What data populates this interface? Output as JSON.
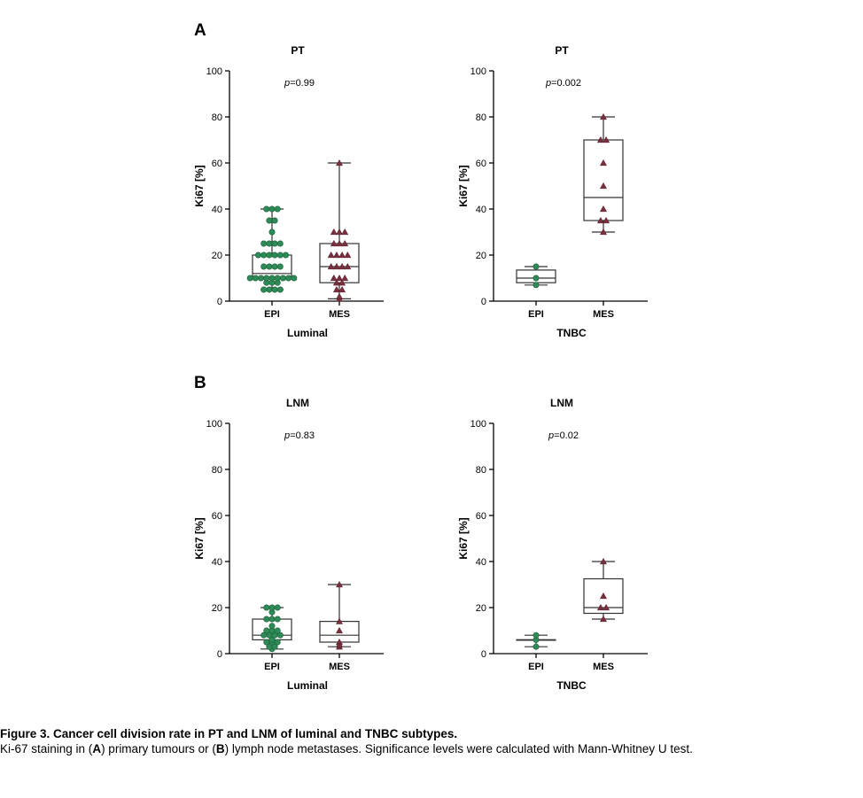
{
  "panel_labels": [
    "A",
    "B"
  ],
  "caption": {
    "title": "Figure 3. Cancer cell division rate in PT and LNM of luminal and TNBC subtypes.",
    "text_1": "Ki-67 staining in (",
    "bold_a": "A",
    "text_2": ") primary tumours or (",
    "bold_b": "B",
    "text_3": ") lymph node metastases. Significance levels were calculated with Mann-Whitney U test."
  },
  "colors": {
    "epi": "#2e8b57",
    "mes": "#7a2f3e",
    "axis": "#000000",
    "box": "#333333"
  },
  "chart_data": [
    {
      "type": "box",
      "title": "PT",
      "annotation_prefix": "p",
      "annotation_value": "=0.99",
      "xlabel": "Luminal",
      "ylabel": "Ki67 [%]",
      "ylim": [
        0,
        100
      ],
      "yticks": [
        0,
        20,
        40,
        60,
        80,
        100
      ],
      "categories": [
        "EPI",
        "MES"
      ],
      "series": [
        {
          "marker": "circle",
          "box": {
            "min": 5,
            "q1": 10,
            "median": 12,
            "q3": 20,
            "max": 40
          },
          "points": [
            40,
            40,
            40,
            35,
            35,
            30,
            25,
            25,
            25,
            25,
            20,
            20,
            20,
            20,
            20,
            20,
            15,
            15,
            15,
            15,
            10,
            10,
            10,
            10,
            10,
            10,
            10,
            10,
            10,
            8,
            8,
            8,
            5,
            5,
            5,
            5
          ]
        },
        {
          "marker": "triangle",
          "box": {
            "min": 1,
            "q1": 8,
            "median": 15,
            "q3": 25,
            "max": 60
          },
          "points": [
            60,
            30,
            30,
            30,
            25,
            25,
            25,
            20,
            20,
            20,
            20,
            15,
            15,
            15,
            15,
            10,
            10,
            10,
            8,
            8,
            5,
            5,
            2,
            1
          ]
        }
      ]
    },
    {
      "type": "box",
      "title": "PT",
      "annotation_prefix": "p",
      "annotation_value": "=0.002",
      "xlabel": "TNBC",
      "ylabel": "Ki67 [%]",
      "ylim": [
        0,
        100
      ],
      "yticks": [
        0,
        20,
        40,
        60,
        80,
        100
      ],
      "categories": [
        "EPI",
        "MES"
      ],
      "series": [
        {
          "marker": "circle",
          "box": {
            "min": 7,
            "q1": 8,
            "median": 10,
            "q3": 13.5,
            "max": 15
          },
          "points": [
            15,
            10,
            7
          ]
        },
        {
          "marker": "triangle",
          "box": {
            "min": 30,
            "q1": 35,
            "median": 45,
            "q3": 70,
            "max": 80
          },
          "points": [
            80,
            70,
            70,
            60,
            50,
            40,
            35,
            35,
            30
          ]
        }
      ]
    },
    {
      "type": "box",
      "title": "LNM",
      "annotation_prefix": "p",
      "annotation_value": "=0.83",
      "xlabel": "Luminal",
      "ylabel": "Ki67 [%]",
      "ylim": [
        0,
        100
      ],
      "yticks": [
        0,
        20,
        40,
        60,
        80,
        100
      ],
      "categories": [
        "EPI",
        "MES"
      ],
      "series": [
        {
          "marker": "circle",
          "box": {
            "min": 2,
            "q1": 6,
            "median": 8,
            "q3": 15,
            "max": 20
          },
          "points": [
            20,
            20,
            20,
            18,
            15,
            15,
            15,
            12,
            10,
            10,
            10,
            8,
            8,
            8,
            8,
            6,
            5,
            5,
            5,
            3,
            3,
            2
          ]
        },
        {
          "marker": "triangle",
          "box": {
            "min": 3,
            "q1": 5,
            "median": 8,
            "q3": 14,
            "max": 30
          },
          "points": [
            30,
            14,
            10,
            5,
            4,
            3
          ]
        }
      ]
    },
    {
      "type": "box",
      "title": "LNM",
      "annotation_prefix": "p",
      "annotation_value": "=0.02",
      "xlabel": "TNBC",
      "ylabel": "Ki67 [%]",
      "ylim": [
        0,
        100
      ],
      "yticks": [
        0,
        20,
        40,
        60,
        80,
        100
      ],
      "categories": [
        "EPI",
        "MES"
      ],
      "series": [
        {
          "marker": "circle",
          "box": {
            "min": 3,
            "q1": 6,
            "median": 6,
            "q3": 6,
            "max": 8
          },
          "points": [
            8,
            6,
            3
          ]
        },
        {
          "marker": "triangle",
          "box": {
            "min": 15,
            "q1": 17.5,
            "median": 20,
            "q3": 32.5,
            "max": 40
          },
          "points": [
            40,
            25,
            20,
            20,
            15
          ]
        }
      ]
    }
  ]
}
